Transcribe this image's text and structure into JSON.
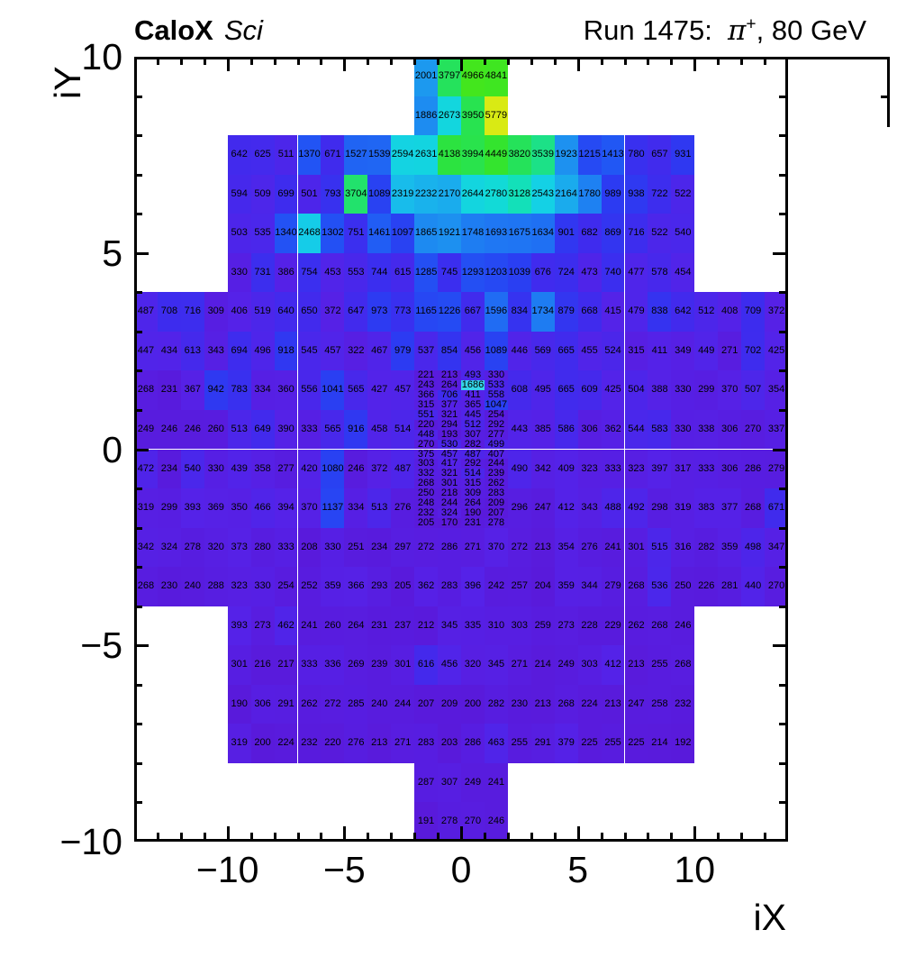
{
  "header": {
    "left_title_bold": "CaloX",
    "left_title_italic": "Sci",
    "right_title_pre": "Run 1475:  ",
    "right_title_pi": "π",
    "right_title_sup": "+",
    "right_title_post": ", 80 GeV"
  },
  "axes": {
    "x_title": "iX",
    "y_title": "iY",
    "x_major_ticks": [
      -10,
      -5,
      0,
      5,
      10
    ],
    "y_major_ticks": [
      10,
      5,
      0,
      -5,
      -10
    ],
    "x_major_labels": [
      "−10",
      "−5",
      "0",
      "5",
      "10"
    ],
    "y_major_labels": [
      "10",
      "5",
      "0",
      "−5",
      "−10"
    ]
  },
  "palette": {
    "frame_color": "#000000",
    "text_color": "#000000",
    "stops": [
      [
        150,
        "#5a18d8"
      ],
      [
        400,
        "#5522e8"
      ],
      [
        700,
        "#3e2cee"
      ],
      [
        1000,
        "#2b3cf2"
      ],
      [
        1400,
        "#2156f4"
      ],
      [
        1800,
        "#1e83f2"
      ],
      [
        2100,
        "#1ba4ee"
      ],
      [
        2500,
        "#15cfe8"
      ],
      [
        2900,
        "#10dfd0"
      ],
      [
        3400,
        "#17e19e"
      ],
      [
        3800,
        "#25e25c"
      ],
      [
        4300,
        "#30e433"
      ],
      [
        5000,
        "#44e61c"
      ],
      [
        5400,
        "#9ce818"
      ],
      [
        5800,
        "#dcea14"
      ]
    ]
  },
  "chart_data": {
    "type": "heatmap",
    "title": "Run 1475: π+, 80 GeV",
    "experiment": "CaloX Sci",
    "xlabel": "iX",
    "ylabel": "iY",
    "xlim": [
      -14,
      14
    ],
    "ylim": [
      -10,
      10
    ],
    "zmin": 0,
    "zmax": 5800,
    "grid": false,
    "rows": [
      {
        "iy_top": 10,
        "x0": -2,
        "values": [
          2001,
          3797,
          4966,
          4841
        ]
      },
      {
        "iy_top": 9,
        "x0": -2,
        "values": [
          1886,
          2673,
          3950,
          5779
        ]
      },
      {
        "iy_top": 8,
        "x0": -10,
        "values": [
          642,
          625,
          511,
          1370,
          671,
          1527,
          1539,
          2594,
          2631,
          4138,
          3994,
          4449,
          3820,
          3539,
          1923,
          1215,
          1413,
          780,
          657,
          931
        ]
      },
      {
        "iy_top": 7,
        "x0": -10,
        "values": [
          594,
          509,
          699,
          501,
          793,
          3704,
          1089,
          2319,
          2232,
          2170,
          2644,
          2780,
          3128,
          2543,
          2164,
          1780,
          989,
          938,
          722,
          522
        ]
      },
      {
        "iy_top": 6,
        "x0": -10,
        "values": [
          503,
          535,
          1340,
          2468,
          1302,
          751,
          1461,
          1097,
          1865,
          1921,
          1748,
          1693,
          1675,
          1634,
          901,
          682,
          869,
          716,
          522,
          540
        ]
      },
      {
        "iy_top": 5,
        "x0": -10,
        "values": [
          330,
          731,
          386,
          754,
          453,
          553,
          744,
          615,
          1285,
          745,
          1293,
          1203,
          1039,
          676,
          724,
          473,
          740,
          477,
          578,
          454
        ]
      },
      {
        "iy_top": 4,
        "x0": -14,
        "values": [
          487,
          708,
          716,
          309,
          406,
          519,
          640,
          650,
          372,
          647,
          973,
          773,
          1165,
          1226,
          667,
          1596,
          834,
          1734,
          879,
          668,
          415,
          479,
          838,
          642,
          512,
          408,
          709,
          372
        ]
      },
      {
        "iy_top": 3,
        "x0": -14,
        "values": [
          447,
          434,
          613,
          343,
          694,
          496,
          918,
          545,
          457,
          322,
          467,
          979,
          537,
          854,
          456,
          1089,
          446,
          569,
          665,
          455,
          524,
          315,
          411,
          349,
          449,
          271,
          702,
          425
        ]
      },
      {
        "iy_top": 2,
        "x0": -14,
        "values": [
          268,
          231,
          367,
          942,
          783,
          334,
          360,
          556,
          1041,
          565,
          427,
          457
        ]
      },
      {
        "iy_top": 2,
        "x0": 2,
        "values": [
          608,
          495,
          665,
          609,
          425,
          504,
          388,
          330,
          299,
          370,
          507,
          354
        ]
      },
      {
        "iy_top": 1,
        "x0": -14,
        "values": [
          249,
          246,
          246,
          260,
          513,
          649,
          390,
          333,
          565,
          916,
          458,
          514
        ]
      },
      {
        "iy_top": 1,
        "x0": 2,
        "values": [
          443,
          385,
          586,
          306,
          362,
          544,
          583,
          330,
          338,
          306,
          270,
          337
        ]
      },
      {
        "iy_top": 0,
        "x0": -14,
        "values": [
          472,
          234,
          540,
          330,
          439,
          358,
          277,
          420,
          1080,
          246,
          372,
          487
        ]
      },
      {
        "iy_top": 0,
        "x0": 2,
        "values": [
          490,
          342,
          409,
          323,
          333,
          323,
          397,
          317,
          333,
          306,
          286,
          279
        ]
      },
      {
        "iy_top": -1,
        "x0": -14,
        "values": [
          319,
          299,
          393,
          369,
          350,
          466,
          394,
          370,
          1137,
          334,
          513,
          276
        ]
      },
      {
        "iy_top": -1,
        "x0": 2,
        "values": [
          296,
          247,
          412,
          343,
          488,
          492,
          298,
          319,
          383,
          377,
          268,
          671
        ]
      },
      {
        "iy_top": -2,
        "x0": -14,
        "values": [
          342,
          324,
          278,
          320,
          373,
          280,
          333,
          208,
          330,
          251,
          234,
          297,
          272,
          286,
          271,
          370,
          272,
          213,
          354,
          276,
          241,
          301,
          515,
          316,
          282,
          359,
          498,
          347
        ]
      },
      {
        "iy_top": -3,
        "x0": -14,
        "values": [
          268,
          230,
          240,
          288,
          323,
          330,
          254,
          252,
          359,
          366,
          293,
          205,
          362,
          283,
          396,
          242,
          257,
          204,
          359,
          344,
          279,
          268,
          536,
          250,
          226,
          281,
          440,
          270
        ]
      },
      {
        "iy_top": -4,
        "x0": -10,
        "values": [
          393,
          273,
          462,
          241,
          260,
          264,
          231,
          237,
          212,
          345,
          335,
          310,
          303,
          259,
          273,
          228,
          229,
          262,
          268,
          246
        ]
      },
      {
        "iy_top": -5,
        "x0": -10,
        "values": [
          301,
          216,
          217,
          333,
          336,
          269,
          239,
          301,
          616,
          456,
          320,
          345,
          271,
          214,
          249,
          303,
          412,
          213,
          255,
          268
        ]
      },
      {
        "iy_top": -6,
        "x0": -10,
        "values": [
          190,
          306,
          291,
          262,
          272,
          285,
          240,
          244,
          207,
          209,
          200,
          282,
          230,
          213,
          268,
          224,
          213,
          247,
          258,
          232
        ]
      },
      {
        "iy_top": -7,
        "x0": -10,
        "values": [
          319,
          200,
          224,
          232,
          220,
          276,
          213,
          271,
          283,
          203,
          286,
          463,
          255,
          291,
          379,
          225,
          255,
          225,
          214,
          192
        ]
      },
      {
        "iy_top": -8,
        "x0": -2,
        "values": [
          287,
          307,
          249,
          241
        ]
      },
      {
        "iy_top": -9,
        "x0": -2,
        "values": [
          191,
          278,
          270,
          246
        ]
      }
    ],
    "fine_region": {
      "x0": -2,
      "iy_top": 2,
      "cell_w_units": 1,
      "cell_h_units": 0.25,
      "rows": [
        [
          221,
          213,
          493,
          330
        ],
        [
          243,
          264,
          1686,
          533
        ],
        [
          366,
          706,
          411,
          558
        ],
        [
          315,
          377,
          365,
          1047
        ],
        [
          551,
          321,
          445,
          254
        ],
        [
          220,
          294,
          512,
          292
        ],
        [
          448,
          193,
          307,
          277
        ],
        [
          270,
          530,
          282,
          499
        ],
        [
          375,
          457,
          487,
          407
        ],
        [
          303,
          417,
          292,
          244
        ],
        [
          332,
          321,
          514,
          239
        ],
        [
          268,
          301,
          315,
          262
        ],
        [
          250,
          218,
          309,
          283
        ],
        [
          248,
          244,
          264,
          209
        ],
        [
          232,
          324,
          190,
          207
        ],
        [
          205,
          170,
          231,
          278
        ]
      ],
      "highlight": {
        "row": 1,
        "col": 2,
        "color": "#35d4e8"
      }
    }
  }
}
